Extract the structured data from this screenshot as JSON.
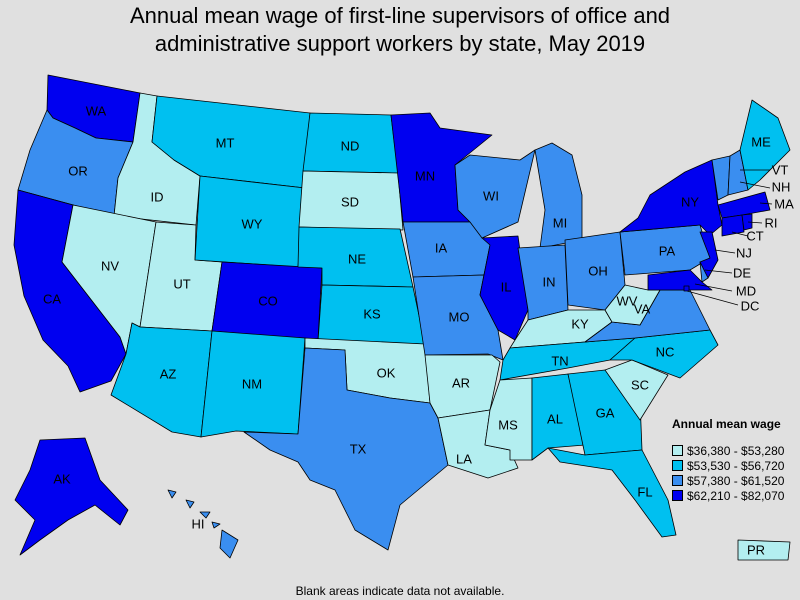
{
  "title_line1": "Annual mean wage of first-line supervisors of office and",
  "title_line2": "administrative support workers by state, May 2019",
  "legend": {
    "title": "Annual mean wage",
    "items": [
      {
        "range": "$36,380 - $53,280",
        "color": "#b3eef0"
      },
      {
        "range": "$53,530 - $56,720",
        "color": "#00c0f0"
      },
      {
        "range": "$57,380 - $61,520",
        "color": "#3a8ef0"
      },
      {
        "range": "$62,210 - $82,070",
        "color": "#0000f0"
      }
    ]
  },
  "footnote": "Blank areas indicate data not available.",
  "states": [
    {
      "abbr": "WA",
      "tier": 3
    },
    {
      "abbr": "OR",
      "tier": 2
    },
    {
      "abbr": "CA",
      "tier": 3
    },
    {
      "abbr": "ID",
      "tier": 0
    },
    {
      "abbr": "NV",
      "tier": 0
    },
    {
      "abbr": "UT",
      "tier": 0
    },
    {
      "abbr": "AZ",
      "tier": 1
    },
    {
      "abbr": "MT",
      "tier": 1
    },
    {
      "abbr": "WY",
      "tier": 1
    },
    {
      "abbr": "CO",
      "tier": 3
    },
    {
      "abbr": "NM",
      "tier": 1
    },
    {
      "abbr": "ND",
      "tier": 1
    },
    {
      "abbr": "SD",
      "tier": 0
    },
    {
      "abbr": "NE",
      "tier": 1
    },
    {
      "abbr": "KS",
      "tier": 1
    },
    {
      "abbr": "OK",
      "tier": 0
    },
    {
      "abbr": "TX",
      "tier": 2
    },
    {
      "abbr": "MN",
      "tier": 3
    },
    {
      "abbr": "IA",
      "tier": 2
    },
    {
      "abbr": "MO",
      "tier": 2
    },
    {
      "abbr": "AR",
      "tier": 0
    },
    {
      "abbr": "LA",
      "tier": 0
    },
    {
      "abbr": "WI",
      "tier": 2
    },
    {
      "abbr": "IL",
      "tier": 3
    },
    {
      "abbr": "MI",
      "tier": 2
    },
    {
      "abbr": "IN",
      "tier": 2
    },
    {
      "abbr": "OH",
      "tier": 2
    },
    {
      "abbr": "KY",
      "tier": 0
    },
    {
      "abbr": "TN",
      "tier": 1
    },
    {
      "abbr": "MS",
      "tier": 0
    },
    {
      "abbr": "AL",
      "tier": 1
    },
    {
      "abbr": "GA",
      "tier": 1
    },
    {
      "abbr": "FL",
      "tier": 1
    },
    {
      "abbr": "SC",
      "tier": 0
    },
    {
      "abbr": "NC",
      "tier": 1
    },
    {
      "abbr": "VA",
      "tier": 2
    },
    {
      "abbr": "WV",
      "tier": 0
    },
    {
      "abbr": "PA",
      "tier": 2
    },
    {
      "abbr": "NY",
      "tier": 3
    },
    {
      "abbr": "VT",
      "tier": 2
    },
    {
      "abbr": "NH",
      "tier": 2
    },
    {
      "abbr": "ME",
      "tier": 1
    },
    {
      "abbr": "MA",
      "tier": 3
    },
    {
      "abbr": "CT",
      "tier": 3
    },
    {
      "abbr": "RI",
      "tier": 3
    },
    {
      "abbr": "NJ",
      "tier": 3
    },
    {
      "abbr": "DE",
      "tier": 2
    },
    {
      "abbr": "MD",
      "tier": 3
    },
    {
      "abbr": "DC",
      "tier": 3
    },
    {
      "abbr": "AK",
      "tier": 3
    },
    {
      "abbr": "HI",
      "tier": 2
    },
    {
      "abbr": "PR",
      "tier": 0
    }
  ]
}
